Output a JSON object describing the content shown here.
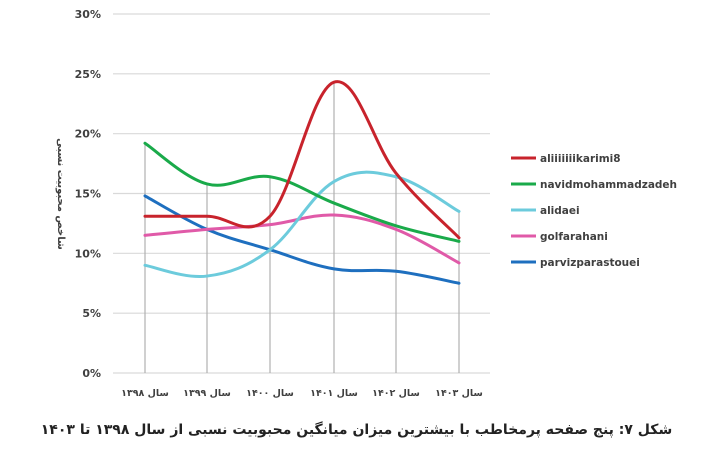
{
  "chart_data": {
    "type": "line",
    "title": "",
    "xlabel": "",
    "ylabel": "شاخص محبوبیت نسبی",
    "categories": [
      "سال ۱۳۹۸",
      "سال ۱۳۹۹",
      "سال ۱۴۰۰",
      "سال ۱۴۰۱",
      "سال ۱۴۰۲",
      "سال ۱۴۰۳"
    ],
    "y_ticks": [
      "0%",
      "5%",
      "10%",
      "15%",
      "20%",
      "25%",
      "30%"
    ],
    "ylim": [
      0,
      30
    ],
    "y_unit": "%",
    "grid": true,
    "smooth": true,
    "legend_position": "right",
    "series": [
      {
        "name": "aliiiiiiikarimi8",
        "color": "#c8232c",
        "values": [
          13.1,
          13.1,
          13.1,
          24.3,
          16.7,
          11.3
        ]
      },
      {
        "name": "navidmohammadzadeh",
        "color": "#1aaa4a",
        "values": [
          19.2,
          15.8,
          16.4,
          14.2,
          12.3,
          11.0
        ]
      },
      {
        "name": "alidaei",
        "color": "#6ccbdc",
        "values": [
          9.0,
          8.1,
          10.3,
          16.0,
          16.4,
          13.5
        ]
      },
      {
        "name": "golfarahani",
        "color": "#e05aa8",
        "values": [
          11.5,
          12.0,
          12.4,
          13.2,
          12.0,
          9.2
        ]
      },
      {
        "name": "parvizparastouei",
        "color": "#1e6fbf",
        "values": [
          14.8,
          12.0,
          10.3,
          8.7,
          8.5,
          7.5
        ]
      }
    ]
  },
  "caption": "شکل ۷: پنج صفحه پرمخاطب با بیشترین میزان میانگین محبوبیت نسبی از سال ۱۳۹۸ تا ۱۴۰۳",
  "style": {
    "gridline_color": "#d9d9d9",
    "category_line_color": "#b0b0b0"
  }
}
